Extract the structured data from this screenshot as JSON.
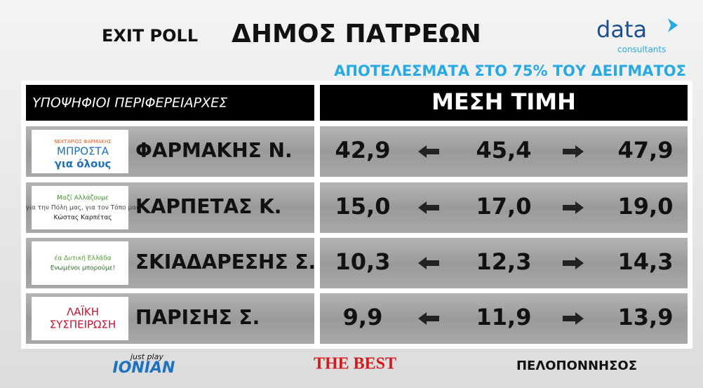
{
  "header": {
    "title_prefix": "EXIT POLL",
    "title": "ΔΗΜΟΣ ΠΑΤΡΕΩΝ",
    "brand": "data",
    "brand_sub": "consultants",
    "subtitle": "ΑΠΟΤΕΛΕΣΜΑΤΑ ΣΤΟ 75% ΤΟΥ ΔΕΙΓΜΑΤΟΣ"
  },
  "table": {
    "columns": [
      "ΥΠΟΨΗΦΙΟΙ ΠΕΡΙΦΕΡΕΙΑΡΧΕΣ",
      "ΜΕΣΗ ΤΙΜΗ"
    ],
    "rows": [
      {
        "logo": [
          "ΝΕΚΤΑΡΙΟΣ ΦΑΡΜΑΚΗΣ",
          "ΜΠΡΟΣΤΑ",
          "για όλους"
        ],
        "name": "ΦΑΡΜΑΚΗΣ Ν.",
        "low": "42,9",
        "mid": "45,4",
        "high": "47,9"
      },
      {
        "logo": [
          "Μαζί Αλλάζουμε",
          "για την Πόλη μας, για τον Τόπο μας",
          "Κώστας Καρπέτας"
        ],
        "name": "ΚΑΡΠΕΤΑΣ Κ.",
        "low": "15,0",
        "mid": "17,0",
        "high": "19,0"
      },
      {
        "logo": [
          "έα Δυτική Ελλάδα",
          "Ενωμένοι μπορούμε!"
        ],
        "name": "ΣΚΙΑΔΑΡΕΣΗΣ Σ.",
        "low": "10,3",
        "mid": "12,3",
        "high": "14,3"
      },
      {
        "logo": [
          "ΛΑΪΚΗ",
          "ΣΥΣΠΕΙΡΩΣΗ"
        ],
        "name": "ΠΑΡΙΣΗΣ Σ.",
        "low": "9,9",
        "mid": "11,9",
        "high": "13,9"
      }
    ]
  },
  "footer": {
    "sponsors": [
      "just play",
      "IONIAN",
      "THE BEST",
      "ΠΕΛΟΠΟΝΝΗΣΟΣ"
    ]
  }
}
